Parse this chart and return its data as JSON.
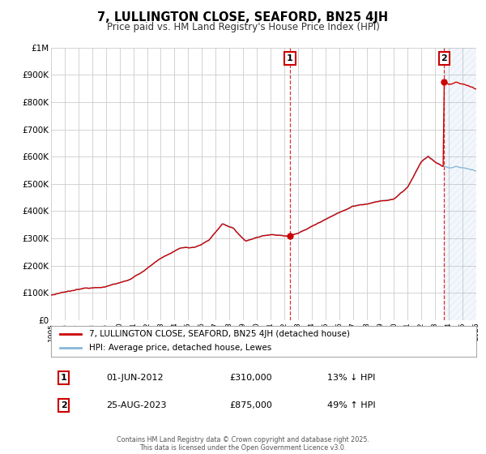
{
  "title": "7, LULLINGTON CLOSE, SEAFORD, BN25 4JH",
  "subtitle": "Price paid vs. HM Land Registry's House Price Index (HPI)",
  "hpi_color": "#89b8d9",
  "price_color": "#cc0000",
  "bg_color": "#ffffff",
  "plot_bg_color": "#ffffff",
  "grid_color": "#cccccc",
  "t1_x": 2012.42,
  "t1_y": 310000,
  "t2_x": 2023.65,
  "t2_y": 875000,
  "annotation1_date": "01-JUN-2012",
  "annotation1_price": "£310,000",
  "annotation1_hpi": "13% ↓ HPI",
  "annotation2_date": "25-AUG-2023",
  "annotation2_price": "£875,000",
  "annotation2_hpi": "49% ↑ HPI",
  "legend_label1": "7, LULLINGTON CLOSE, SEAFORD, BN25 4JH (detached house)",
  "legend_label2": "HPI: Average price, detached house, Lewes",
  "footnote": "Contains HM Land Registry data © Crown copyright and database right 2025.\nThis data is licensed under the Open Government Licence v3.0.",
  "ylim": [
    0,
    1000000
  ],
  "xlim": [
    1995,
    2026
  ],
  "yticks": [
    0,
    100000,
    200000,
    300000,
    400000,
    500000,
    600000,
    700000,
    800000,
    900000,
    1000000
  ],
  "ytick_labels": [
    "£0",
    "£100K",
    "£200K",
    "£300K",
    "£400K",
    "£500K",
    "£600K",
    "£700K",
    "£800K",
    "£900K",
    "£1M"
  ]
}
